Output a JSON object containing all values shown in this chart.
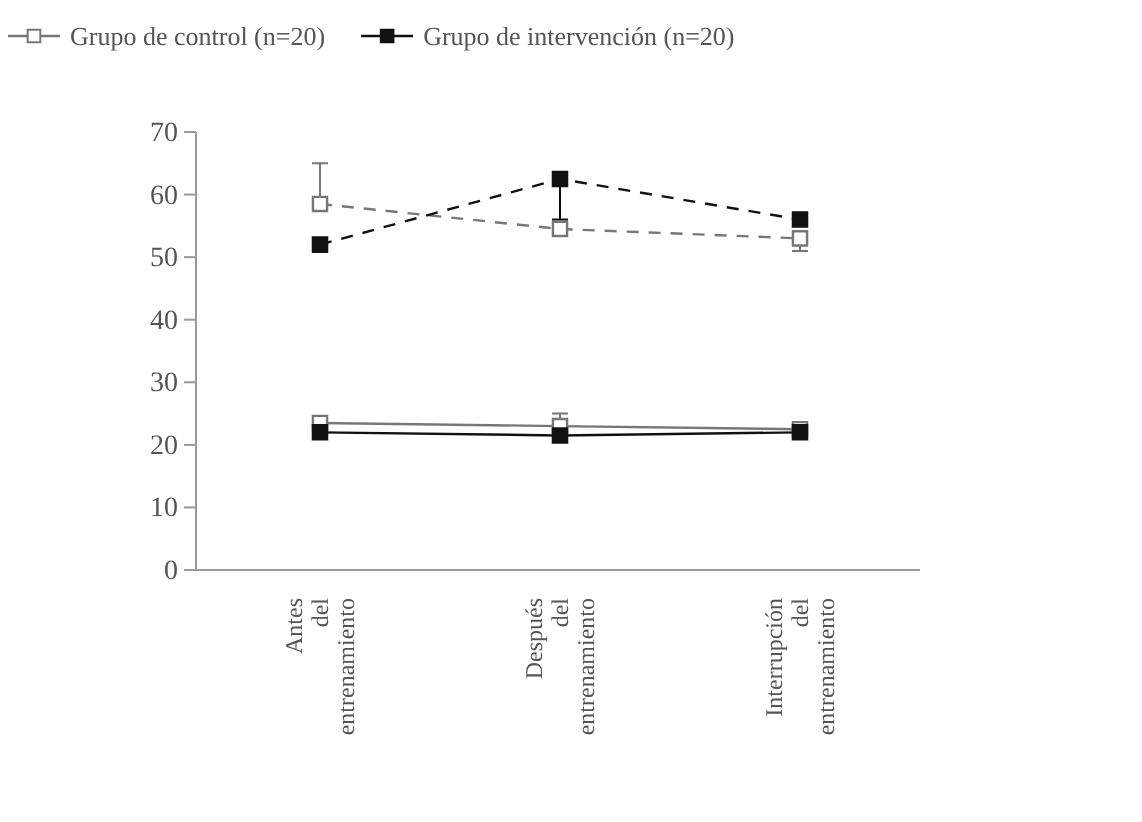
{
  "chart_data": {
    "type": "line",
    "categories": [
      "Antes del entrenamiento",
      "Después del entrenamiento",
      "Interrupción del entrenamiento"
    ],
    "ylim": [
      0,
      70
    ],
    "yticks": [
      0,
      10,
      20,
      30,
      40,
      50,
      60,
      70
    ],
    "legend": "top",
    "grid": false,
    "series": [
      {
        "name": "Grupo de control (n=20)",
        "color": "#777777",
        "marker": "square",
        "line_style": "dashed",
        "values": [
          58.5,
          54.5,
          53
        ],
        "errors": [
          [
            58.5,
            65
          ],
          null,
          [
            51,
            53
          ]
        ]
      },
      {
        "name": "Grupo de intervención (n=20)",
        "color": "#111111",
        "marker": "square",
        "line_style": "dashed",
        "values": [
          52,
          62.5,
          56
        ],
        "errors": [
          null,
          [
            56,
            62.5
          ],
          null
        ]
      },
      {
        "color": "#777777",
        "marker": "square",
        "line_style": "solid",
        "values": [
          23.5,
          23,
          22.5
        ],
        "errors": [
          null,
          [
            23,
            25
          ],
          null
        ]
      },
      {
        "color": "#111111",
        "marker": "square",
        "line_style": "solid",
        "values": [
          22,
          21.5,
          22
        ]
      }
    ]
  }
}
